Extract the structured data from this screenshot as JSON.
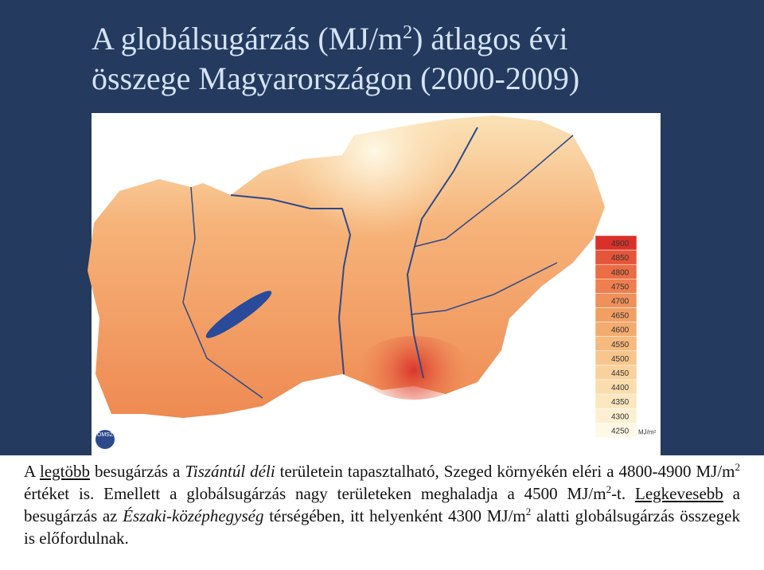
{
  "title": {
    "lines": [
      [
        {
          "text": "A globálsugárzás (MJ/m"
        },
        {
          "text": "2",
          "style": "sup"
        },
        {
          "text": ") átlagos évi"
        }
      ],
      [
        {
          "text": "összege Magyarországon (2000-2009)"
        }
      ]
    ]
  },
  "map": {
    "logo": "OMSZ",
    "legend": {
      "unit": "MJ/m²",
      "items": [
        {
          "label": "4900",
          "color": "#d9312a"
        },
        {
          "label": "4850",
          "color": "#e4553a"
        },
        {
          "label": "4800",
          "color": "#ea6d45"
        },
        {
          "label": "4750",
          "color": "#ee8050"
        },
        {
          "label": "4700",
          "color": "#f0915a"
        },
        {
          "label": "4650",
          "color": "#f29f64"
        },
        {
          "label": "4600",
          "color": "#f4ab6f"
        },
        {
          "label": "4550",
          "color": "#f6b97e"
        },
        {
          "label": "4500",
          "color": "#f8c58d"
        },
        {
          "label": "4450",
          "color": "#f9d19c"
        },
        {
          "label": "4400",
          "color": "#fbddad"
        },
        {
          "label": "4350",
          "color": "#fce7bf"
        },
        {
          "label": "4300",
          "color": "#fdf0d2"
        },
        {
          "label": "4250",
          "color": "#fef8e6"
        }
      ]
    }
  },
  "paragraph": [
    {
      "text": "A "
    },
    {
      "text": "legtöbb",
      "style": "underline"
    },
    {
      "text": " besugárzás a "
    },
    {
      "text": "Tiszántúl déli",
      "style": "italic"
    },
    {
      "text": " területein tapasztalható, Szeged környékén eléri a 4800-4900 MJ/m"
    },
    {
      "text": "2",
      "style": "sup"
    },
    {
      "text": " értéket is. Emellett a globálsugárzás nagy területeken meghaladja a 4500 MJ/m"
    },
    {
      "text": "2",
      "style": "sup"
    },
    {
      "text": "-t. "
    },
    {
      "text": "Legkevesebb",
      "style": "underline"
    },
    {
      "text": " a besugárzás az "
    },
    {
      "text": "Északi-középhegység",
      "style": "italic"
    },
    {
      "text": " térségében, itt helyenként 4300 MJ/m"
    },
    {
      "text": "2",
      "style": "sup"
    },
    {
      "text": " alatti globálsugárzás összegek is előfordulnak."
    }
  ]
}
